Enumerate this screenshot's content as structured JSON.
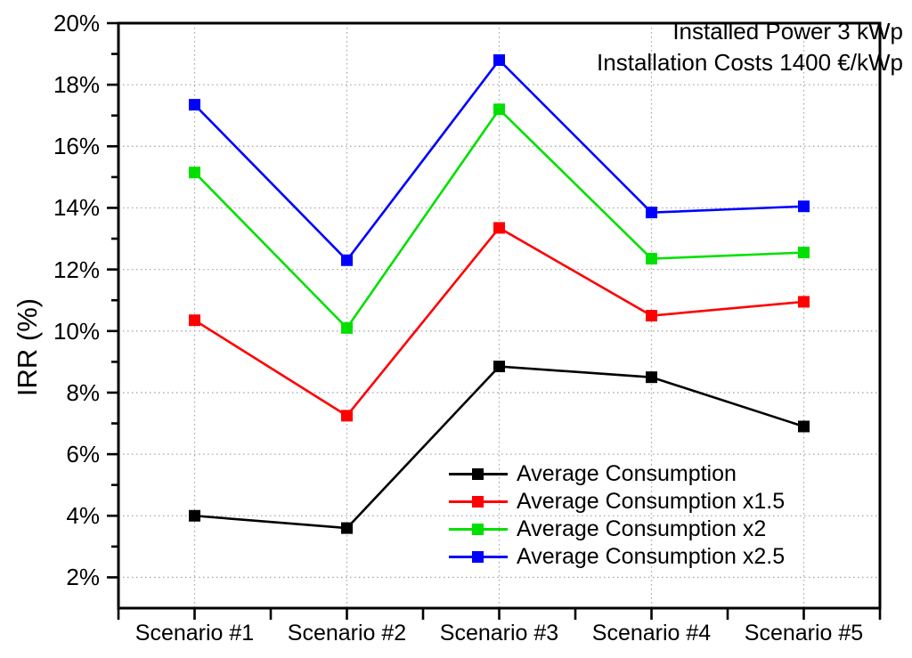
{
  "chart_data": {
    "type": "line",
    "title_lines": [
      "Installed Power 3 kWp",
      "Installation Costs 1400 €/kWp"
    ],
    "ylabel": "IRR (%)",
    "xlabel": "",
    "categories": [
      "Scenario #1",
      "Scenario #2",
      "Scenario #3",
      "Scenario #4",
      "Scenario #5"
    ],
    "series": [
      {
        "name": "Average Consumption",
        "color": "#000000",
        "values": [
          4.0,
          3.6,
          8.85,
          8.5,
          6.9
        ]
      },
      {
        "name": "Average Consumption x1.5",
        "color": "#ff0000",
        "values": [
          10.35,
          7.25,
          13.35,
          10.5,
          10.95
        ]
      },
      {
        "name": "Average Consumption x2",
        "color": "#00e000",
        "values": [
          15.15,
          10.1,
          17.2,
          12.35,
          12.55
        ]
      },
      {
        "name": "Average Consumption x2.5",
        "color": "#0000ff",
        "values": [
          17.35,
          12.3,
          18.8,
          13.85,
          14.05
        ]
      }
    ],
    "ylim": [
      1,
      20
    ],
    "yticks": [
      {
        "value": 2,
        "label": "2%"
      },
      {
        "value": 4,
        "label": "4%"
      },
      {
        "value": 6,
        "label": "6%"
      },
      {
        "value": 8,
        "label": "8%"
      },
      {
        "value": 10,
        "label": "10%"
      },
      {
        "value": 12,
        "label": "12%"
      },
      {
        "value": 14,
        "label": "14%"
      },
      {
        "value": 16,
        "label": "16%"
      },
      {
        "value": 18,
        "label": "18%"
      },
      {
        "value": 20,
        "label": "20%"
      }
    ],
    "grid": true,
    "legend_position": "inside-bottom-center",
    "marker": "square"
  }
}
